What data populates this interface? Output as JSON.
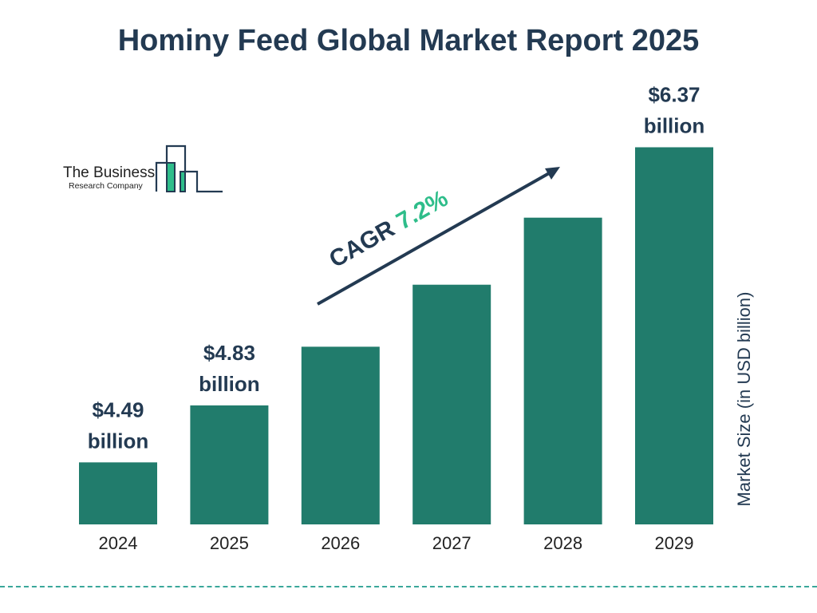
{
  "chart_data": {
    "type": "bar",
    "title": "Hominy Feed Global Market Report 2025",
    "categories": [
      "2024",
      "2025",
      "2026",
      "2027",
      "2028",
      "2029"
    ],
    "values": [
      4.49,
      4.83,
      5.18,
      5.55,
      5.95,
      6.37
    ],
    "data_labels": [
      {
        "index": 0,
        "line1": "$4.49",
        "line2": "billion"
      },
      {
        "index": 1,
        "line1": "$4.83",
        "line2": "billion"
      },
      {
        "index": 5,
        "line1": "$6.37",
        "line2": "billion"
      }
    ],
    "ylabel": "Market Size (in USD billion)",
    "annotation": {
      "prefix": "CAGR ",
      "value": "7.2%"
    },
    "grid": false,
    "colors": {
      "bar": "#217c6c",
      "text": "#233a52",
      "accent": "#2ebd8a"
    }
  },
  "logo": {
    "line1": "The Business",
    "line2": "Research Company"
  }
}
